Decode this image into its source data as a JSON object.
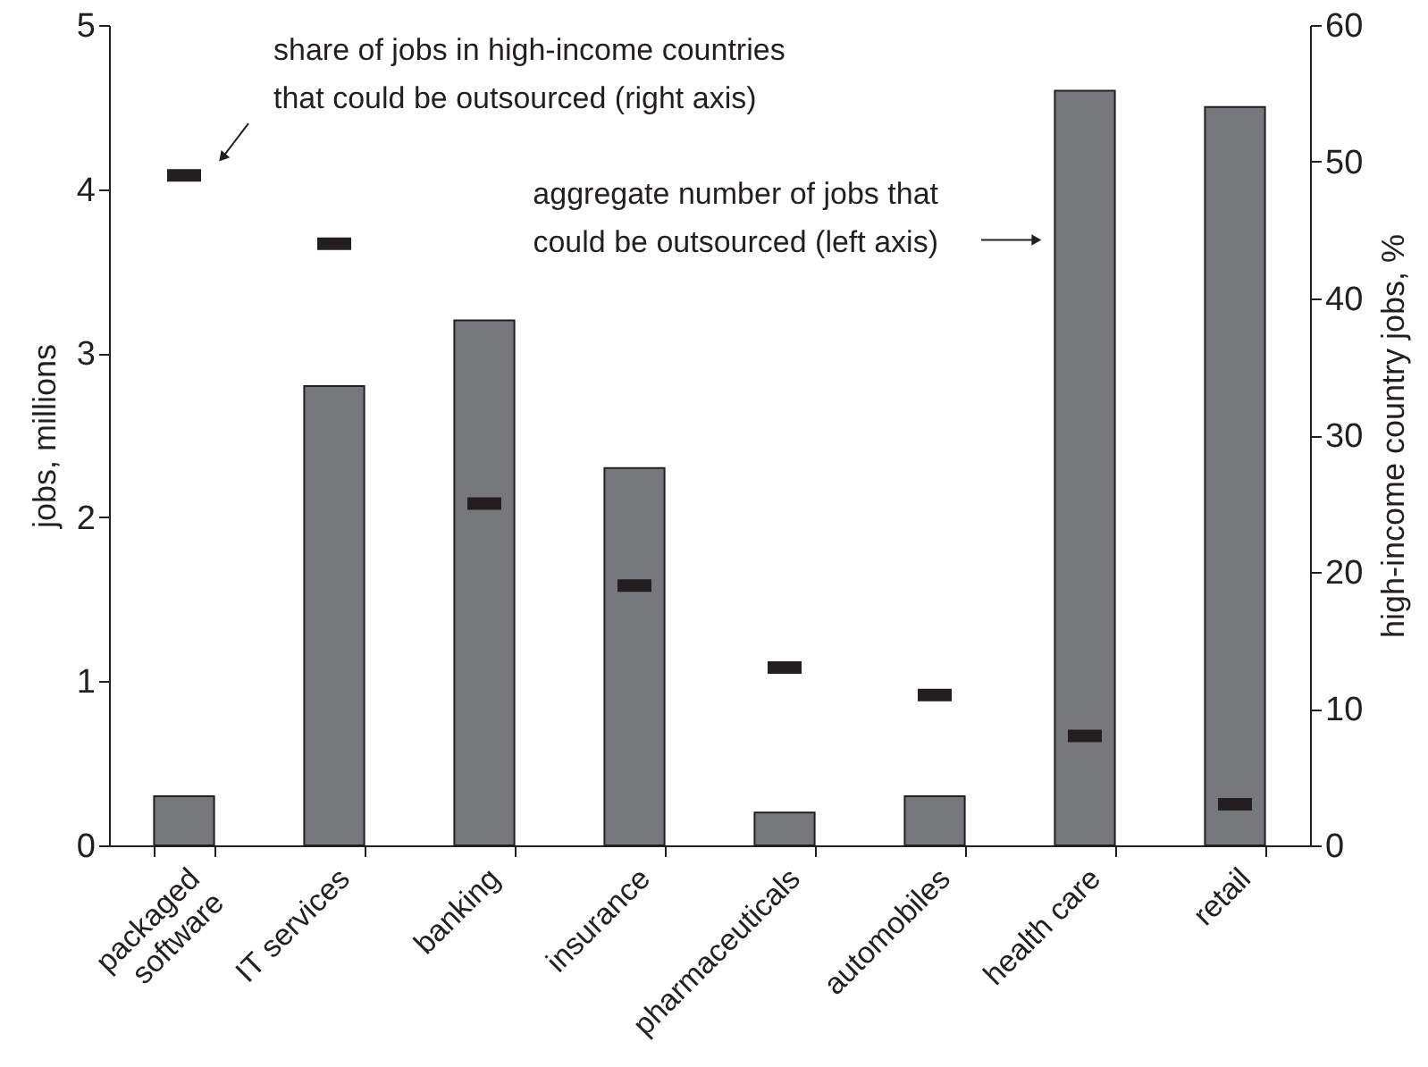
{
  "chart_data": {
    "type": "bar",
    "categories": [
      "packaged software",
      "IT services",
      "banking",
      "insurance",
      "pharmaceuticals",
      "automobiles",
      "health care",
      "retail"
    ],
    "ylabel": "jobs, millions",
    "y2label": "high-income country jobs, %",
    "ylim": [
      0,
      5
    ],
    "yticks": [
      0,
      1,
      2,
      3,
      4,
      5
    ],
    "y2lim": [
      0,
      60
    ],
    "y2ticks": [
      0,
      10,
      20,
      30,
      40,
      50,
      60
    ],
    "series": [
      {
        "color": "#77787b",
        "values": [
          0.3,
          2.8,
          3.2,
          2.3,
          0.2,
          0.3,
          4.6,
          4.5
        ]
      },
      {
        "type": "scatter",
        "axis": "y2",
        "color": "#231f20",
        "values": [
          49,
          44,
          25,
          19,
          13,
          11,
          8,
          3
        ]
      }
    ],
    "annotations": [
      "share of jobs in high-income countries\nthat could be outsourced (right axis)",
      "aggregate number of jobs that\ncould be outsourced (left axis)"
    ]
  }
}
